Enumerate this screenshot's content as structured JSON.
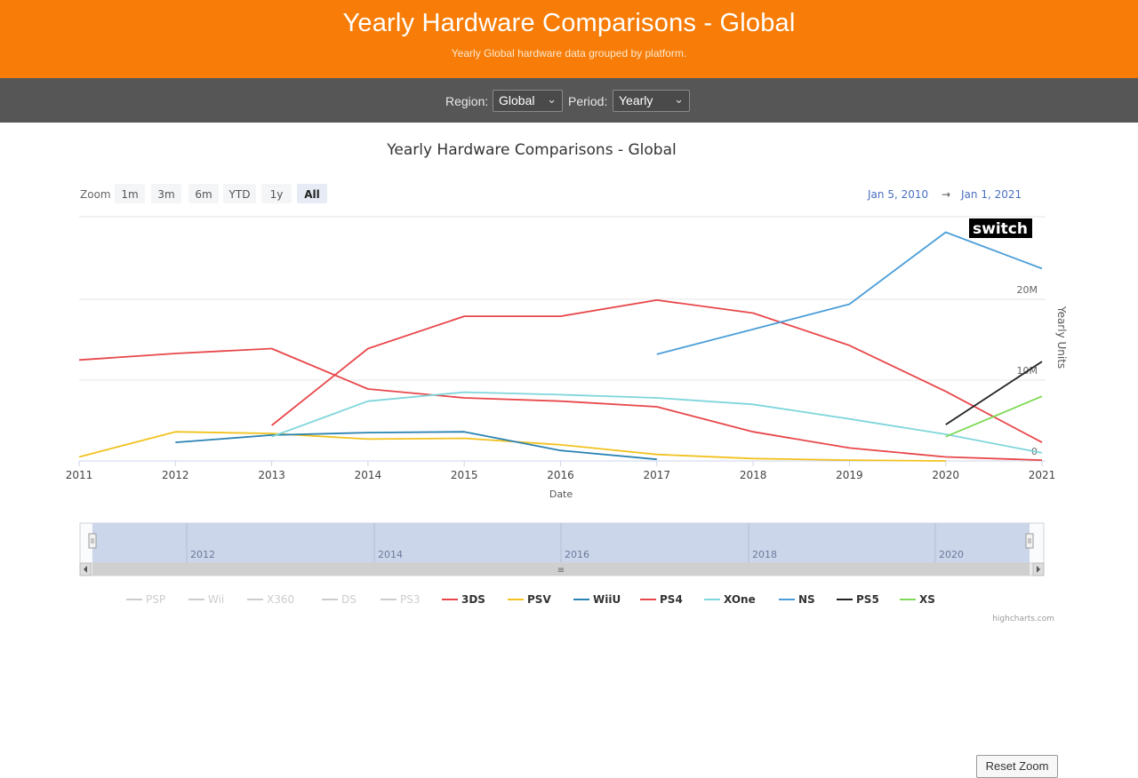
{
  "header": {
    "title": "Yearly Hardware Comparisons - Global",
    "subtitle": "Yearly Global hardware data grouped by platform."
  },
  "toolbar": {
    "region_label": "Region:",
    "region_value": "Global",
    "period_label": "Period:",
    "period_value": "Yearly"
  },
  "zoom": {
    "label": "Zoom",
    "buttons": [
      "1m",
      "3m",
      "6m",
      "YTD",
      "1y",
      "All"
    ],
    "selected": "All",
    "range_from": "Jan 5, 2010",
    "range_to": "Jan 1, 2021",
    "range_sep": "→"
  },
  "navigator": {
    "labels": [
      "2012",
      "2014",
      "2016",
      "2018",
      "2020"
    ],
    "handle_glyph": "≡"
  },
  "annotation": "switch",
  "credits": "highcharts.com",
  "reset_zoom_label": "Reset Zoom",
  "chart_data": {
    "type": "line",
    "title": "Yearly Hardware Comparisons - Global",
    "xlabel": "Date",
    "ylabel": "Yearly Units",
    "x": [
      2011,
      2012,
      2013,
      2014,
      2015,
      2016,
      2017,
      2018,
      2019,
      2020,
      2021
    ],
    "xlim": [
      2011,
      2021
    ],
    "ylim": [
      0,
      30000000
    ],
    "y_ticks": [
      0,
      10000000,
      20000000
    ],
    "y_tick_labels": [
      "0",
      "10M",
      "20M"
    ],
    "series": [
      {
        "name": "PSP",
        "color": "#c8c8c8",
        "hidden": true,
        "points": []
      },
      {
        "name": "Wii",
        "color": "#c8c8c8",
        "hidden": true,
        "points": []
      },
      {
        "name": "X360",
        "color": "#c8c8c8",
        "hidden": true,
        "points": []
      },
      {
        "name": "DS",
        "color": "#c8c8c8",
        "hidden": true,
        "points": []
      },
      {
        "name": "PS3",
        "color": "#c8c8c8",
        "hidden": true,
        "points": []
      },
      {
        "name": "3DS",
        "color": "#e8474a",
        "points": [
          [
            2011,
            12500000
          ],
          [
            2012,
            13300000
          ],
          [
            2013,
            13900000
          ],
          [
            2014,
            8900000
          ],
          [
            2015,
            7800000
          ],
          [
            2016,
            7400000
          ],
          [
            2017,
            6700000
          ],
          [
            2018,
            3600000
          ],
          [
            2019,
            1600000
          ],
          [
            2020,
            500000
          ],
          [
            2021,
            100000
          ]
        ]
      },
      {
        "name": "PSV",
        "color": "#f2c21e",
        "points": [
          [
            2011,
            500000
          ],
          [
            2012,
            3600000
          ],
          [
            2013,
            3400000
          ],
          [
            2014,
            2700000
          ],
          [
            2015,
            2800000
          ],
          [
            2016,
            2000000
          ],
          [
            2017,
            800000
          ],
          [
            2018,
            300000
          ],
          [
            2019,
            100000
          ],
          [
            2020,
            0
          ]
        ]
      },
      {
        "name": "WiiU",
        "color": "#2a83b3",
        "points": [
          [
            2012,
            2300000
          ],
          [
            2013,
            3200000
          ],
          [
            2014,
            3500000
          ],
          [
            2015,
            3600000
          ],
          [
            2016,
            1300000
          ],
          [
            2017,
            200000
          ]
        ]
      },
      {
        "name": "PS4",
        "color": "#e8474a",
        "points": [
          [
            2013,
            4400000
          ],
          [
            2014,
            13900000
          ],
          [
            2015,
            17900000
          ],
          [
            2016,
            17900000
          ],
          [
            2017,
            19900000
          ],
          [
            2018,
            18300000
          ],
          [
            2019,
            14300000
          ],
          [
            2020,
            8600000
          ],
          [
            2021,
            2300000
          ]
        ]
      },
      {
        "name": "XOne",
        "color": "#7fd6db",
        "points": [
          [
            2013,
            3000000
          ],
          [
            2014,
            7400000
          ],
          [
            2015,
            8500000
          ],
          [
            2016,
            8200000
          ],
          [
            2017,
            7800000
          ],
          [
            2018,
            7000000
          ],
          [
            2019,
            5200000
          ],
          [
            2020,
            3300000
          ],
          [
            2021,
            1000000
          ]
        ]
      },
      {
        "name": "NS",
        "color": "#4a9ed8",
        "points": [
          [
            2017,
            13200000
          ],
          [
            2018,
            16300000
          ],
          [
            2019,
            19400000
          ],
          [
            2020,
            28300000
          ],
          [
            2021,
            23800000
          ]
        ]
      },
      {
        "name": "PS5",
        "color": "#222222",
        "points": [
          [
            2020,
            4500000
          ],
          [
            2021,
            12300000
          ]
        ]
      },
      {
        "name": "XS",
        "color": "#7ed957",
        "points": [
          [
            2020,
            3000000
          ],
          [
            2021,
            8000000
          ]
        ]
      }
    ]
  }
}
